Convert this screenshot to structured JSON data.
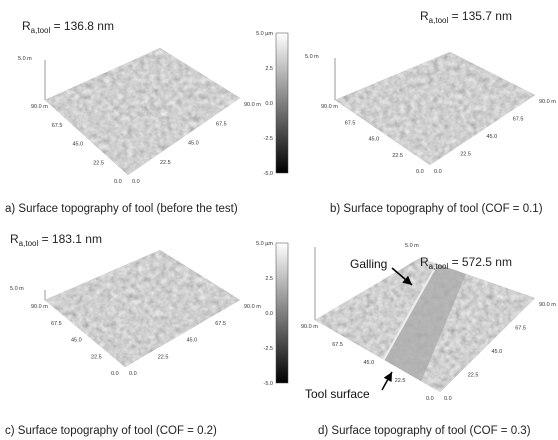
{
  "panels": [
    {
      "ra": {
        "symbol": "R",
        "subscript": "a,tool",
        "value": " = 136.8 nm"
      },
      "caption": "a) Surface topography of tool (before the test)",
      "z_label": "5.0 m",
      "x_ticks": [
        "0.0",
        "22.5",
        "45.0",
        "67.5",
        "90.0 m"
      ],
      "y_ticks": [
        "0.0",
        "22.5",
        "45.0",
        "67.5",
        "90.0 m"
      ],
      "colorbar": [
        "5.0 µm",
        "2.5",
        "0.0",
        "-2.5",
        "-5.0"
      ]
    },
    {
      "ra": {
        "symbol": "R",
        "subscript": "a,tool",
        "value": " = 135.7 nm"
      },
      "caption": "b) Surface topography of tool (COF = 0.1)",
      "z_label": "5.0 m",
      "x_ticks": [
        "0.0",
        "22.5",
        "45.0",
        "67.5",
        "90.0 m"
      ],
      "y_ticks": [
        "0.0",
        "22.5",
        "45.0",
        "67.5",
        "90.0 m"
      ]
    },
    {
      "ra": {
        "symbol": "R",
        "subscript": "a,tool",
        "value": " = 183.1 nm"
      },
      "caption": "c) Surface topography of tool (COF = 0.2)",
      "z_label": "5.0 m",
      "x_ticks": [
        "0.0",
        "22.5",
        "45.0",
        "67.5",
        "90.0 m"
      ],
      "y_ticks": [
        "0.0",
        "22.5",
        "45.0",
        "67.5",
        "90.0 m"
      ],
      "colorbar": [
        "5.0 µm",
        "2.5",
        "0.0",
        "-2.5",
        "-5.0"
      ]
    },
    {
      "ra": {
        "symbol": "R",
        "subscript": "a,tool",
        "value": " = 572.5 nm"
      },
      "caption": "d) Surface topography of tool (COF = 0.3)",
      "z_label": "5.0 m",
      "x_ticks": [
        "0.0",
        "22.5",
        "45.0",
        "67.5",
        "90.0 m"
      ],
      "y_ticks": [
        "0.0",
        "22.5",
        "45.0",
        "67.5",
        "90.0 m"
      ],
      "annotations": [
        "Galling",
        "Tool surface"
      ]
    }
  ]
}
